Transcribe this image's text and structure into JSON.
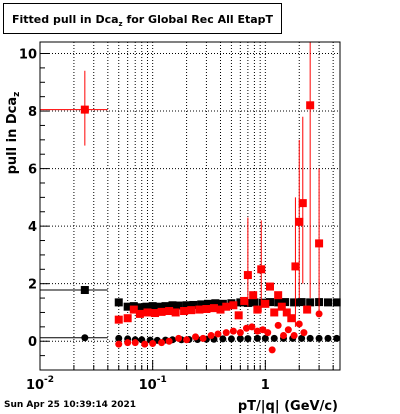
{
  "title": {
    "prefix": "Fitted pull in Dca",
    "subscript": "z",
    "suffix": " for Global Rec All EtapT"
  },
  "timestamp": "Sun Apr 25 10:39:14 2021",
  "chart_data": {
    "type": "scatter",
    "xlabel": "pT/|q| (GeV/c)",
    "ylabel": "pull in Dca",
    "ylabel_sub": "z",
    "xscale": "log",
    "xlim": [
      0.01,
      4.6
    ],
    "ylim": [
      -1.0,
      10.4
    ],
    "grid": true,
    "x_ticks": [
      {
        "v": 0.01,
        "label": "10",
        "exp": "-2"
      },
      {
        "v": 0.1,
        "label": "10",
        "exp": "-1"
      },
      {
        "v": 1,
        "label": "1",
        "exp": ""
      }
    ],
    "y_ticks": [
      0,
      2,
      4,
      6,
      8,
      10
    ],
    "series": [
      {
        "color": "#000000",
        "marker": "square",
        "points": [
          {
            "x": 0.025,
            "y": 1.78,
            "xlo": 0.01,
            "xhi": 0.04
          },
          {
            "x": 0.05,
            "y": 1.35,
            "xlo": 0.047,
            "xhi": 0.053
          },
          {
            "x": 0.06,
            "y": 1.2
          },
          {
            "x": 0.068,
            "y": 1.22
          },
          {
            "x": 0.077,
            "y": 1.18
          },
          {
            "x": 0.088,
            "y": 1.2
          },
          {
            "x": 0.1,
            "y": 1.22
          },
          {
            "x": 0.115,
            "y": 1.2
          },
          {
            "x": 0.13,
            "y": 1.22
          },
          {
            "x": 0.15,
            "y": 1.25
          },
          {
            "x": 0.17,
            "y": 1.24
          },
          {
            "x": 0.2,
            "y": 1.25
          },
          {
            "x": 0.23,
            "y": 1.26
          },
          {
            "x": 0.27,
            "y": 1.28
          },
          {
            "x": 0.31,
            "y": 1.3
          },
          {
            "x": 0.36,
            "y": 1.32
          },
          {
            "x": 0.42,
            "y": 1.3
          },
          {
            "x": 0.5,
            "y": 1.32
          },
          {
            "x": 0.6,
            "y": 1.35
          },
          {
            "x": 0.7,
            "y": 1.33
          },
          {
            "x": 0.8,
            "y": 1.35
          },
          {
            "x": 0.95,
            "y": 1.34
          },
          {
            "x": 1.1,
            "y": 1.36
          },
          {
            "x": 1.3,
            "y": 1.35
          },
          {
            "x": 1.5,
            "y": 1.36
          },
          {
            "x": 1.8,
            "y": 1.35
          },
          {
            "x": 2.1,
            "y": 1.36
          },
          {
            "x": 2.5,
            "y": 1.35
          },
          {
            "x": 3.0,
            "y": 1.36
          },
          {
            "x": 3.6,
            "y": 1.35
          },
          {
            "x": 4.3,
            "y": 1.35
          }
        ]
      },
      {
        "color": "#000000",
        "marker": "circle",
        "points": [
          {
            "x": 0.025,
            "y": 0.12,
            "xlo": 0.01,
            "xhi": 0.04
          },
          {
            "x": 0.05,
            "y": 0.1
          },
          {
            "x": 0.06,
            "y": 0.08
          },
          {
            "x": 0.07,
            "y": 0.05
          },
          {
            "x": 0.08,
            "y": 0.05
          },
          {
            "x": 0.095,
            "y": 0.04
          },
          {
            "x": 0.11,
            "y": 0.03
          },
          {
            "x": 0.13,
            "y": 0.04
          },
          {
            "x": 0.15,
            "y": 0.05
          },
          {
            "x": 0.18,
            "y": 0.05
          },
          {
            "x": 0.21,
            "y": 0.06
          },
          {
            "x": 0.25,
            "y": 0.06
          },
          {
            "x": 0.3,
            "y": 0.07
          },
          {
            "x": 0.35,
            "y": 0.07
          },
          {
            "x": 0.42,
            "y": 0.08
          },
          {
            "x": 0.5,
            "y": 0.08
          },
          {
            "x": 0.6,
            "y": 0.09
          },
          {
            "x": 0.7,
            "y": 0.09
          },
          {
            "x": 0.85,
            "y": 0.1
          },
          {
            "x": 1.0,
            "y": 0.1
          },
          {
            "x": 1.2,
            "y": 0.1
          },
          {
            "x": 1.45,
            "y": 0.1
          },
          {
            "x": 1.75,
            "y": 0.1
          },
          {
            "x": 2.1,
            "y": 0.1
          },
          {
            "x": 2.5,
            "y": 0.1
          },
          {
            "x": 3.0,
            "y": 0.1
          },
          {
            "x": 3.6,
            "y": 0.1
          },
          {
            "x": 4.3,
            "y": 0.1
          }
        ]
      },
      {
        "color": "#ff0000",
        "marker": "square",
        "points": [
          {
            "x": 0.025,
            "y": 8.05,
            "xlo": 0.01,
            "xhi": 0.04,
            "ylo": 6.8,
            "yhi": 9.4
          },
          {
            "x": 0.05,
            "y": 0.75,
            "xlo": 0.047,
            "xhi": 0.053
          },
          {
            "x": 0.06,
            "y": 0.8
          },
          {
            "x": 0.068,
            "y": 1.1
          },
          {
            "x": 0.077,
            "y": 0.95
          },
          {
            "x": 0.09,
            "y": 1.0
          },
          {
            "x": 0.105,
            "y": 0.98
          },
          {
            "x": 0.12,
            "y": 1.02
          },
          {
            "x": 0.14,
            "y": 1.05
          },
          {
            "x": 0.16,
            "y": 1.0
          },
          {
            "x": 0.19,
            "y": 1.05
          },
          {
            "x": 0.22,
            "y": 1.08
          },
          {
            "x": 0.26,
            "y": 1.1
          },
          {
            "x": 0.3,
            "y": 1.12
          },
          {
            "x": 0.35,
            "y": 1.15
          },
          {
            "x": 0.4,
            "y": 1.1
          },
          {
            "x": 0.45,
            "y": 1.2
          },
          {
            "x": 0.52,
            "y": 1.25
          },
          {
            "x": 0.58,
            "y": 0.9
          },
          {
            "x": 0.65,
            "y": 1.4
          },
          {
            "x": 0.7,
            "y": 2.3,
            "ylo": 1.2,
            "yhi": 4.3
          },
          {
            "x": 0.78,
            "y": 1.6
          },
          {
            "x": 0.85,
            "y": 1.1
          },
          {
            "x": 0.92,
            "y": 2.5,
            "ylo": 1.0,
            "yhi": 4.2
          },
          {
            "x": 1.0,
            "y": 1.3
          },
          {
            "x": 1.1,
            "y": 1.9
          },
          {
            "x": 1.2,
            "y": 1.0
          },
          {
            "x": 1.3,
            "y": 1.6
          },
          {
            "x": 1.4,
            "y": 1.2
          },
          {
            "x": 1.55,
            "y": 1.0
          },
          {
            "x": 1.7,
            "y": 0.8
          },
          {
            "x": 1.85,
            "y": 2.6,
            "ylo": 0.5,
            "yhi": 5.0
          },
          {
            "x": 2.0,
            "y": 4.15,
            "ylo": 1.5,
            "yhi": 7.0
          },
          {
            "x": 2.15,
            "y": 4.8,
            "ylo": 2.0,
            "yhi": 7.8
          },
          {
            "x": 2.35,
            "y": 1.1
          },
          {
            "x": 2.5,
            "y": 8.2,
            "ylo": 1.5,
            "yhi": 10.4
          },
          {
            "x": 3.0,
            "y": 3.4,
            "ylo": 1.0,
            "yhi": 6.0
          }
        ]
      },
      {
        "color": "#ff0000",
        "marker": "circle",
        "points": [
          {
            "x": 0.05,
            "y": -0.1
          },
          {
            "x": 0.06,
            "y": -0.05
          },
          {
            "x": 0.07,
            "y": -0.05
          },
          {
            "x": 0.085,
            "y": -0.1
          },
          {
            "x": 0.1,
            "y": -0.08
          },
          {
            "x": 0.12,
            "y": -0.05
          },
          {
            "x": 0.14,
            "y": 0.0
          },
          {
            "x": 0.17,
            "y": 0.1
          },
          {
            "x": 0.2,
            "y": 0.05
          },
          {
            "x": 0.24,
            "y": 0.15
          },
          {
            "x": 0.28,
            "y": 0.1
          },
          {
            "x": 0.33,
            "y": 0.2
          },
          {
            "x": 0.38,
            "y": 0.25
          },
          {
            "x": 0.45,
            "y": 0.3
          },
          {
            "x": 0.52,
            "y": 0.35
          },
          {
            "x": 0.6,
            "y": 0.3
          },
          {
            "x": 0.68,
            "y": 0.45
          },
          {
            "x": 0.76,
            "y": 0.5
          },
          {
            "x": 0.85,
            "y": 0.35
          },
          {
            "x": 0.95,
            "y": 0.4
          },
          {
            "x": 1.05,
            "y": 0.3
          },
          {
            "x": 1.15,
            "y": -0.3
          },
          {
            "x": 1.3,
            "y": 0.55
          },
          {
            "x": 1.45,
            "y": 0.2
          },
          {
            "x": 1.6,
            "y": 0.4
          },
          {
            "x": 1.8,
            "y": 0.2
          },
          {
            "x": 2.0,
            "y": 0.6
          },
          {
            "x": 2.2,
            "y": 0.3
          },
          {
            "x": 3.0,
            "y": 0.95
          }
        ]
      }
    ]
  }
}
